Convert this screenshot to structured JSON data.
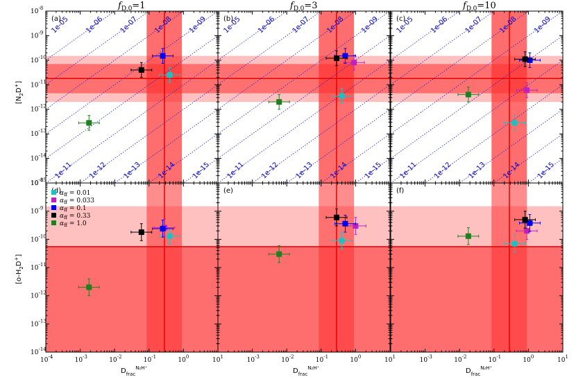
{
  "colors": {
    "band_light": "#ff8c8c",
    "band_dark": "#ff3030",
    "line_red": "#e80000",
    "diag_blue": "#1a1acc"
  },
  "xlabel": "D_frac^{N2H+}",
  "ylabel_top": "[N2D+]",
  "ylabel_bottom": "[o-H2D+]",
  "columns": [
    {
      "title": "f_{D,0}=1",
      "fD": "1"
    },
    {
      "title": "f_{D,0}=3",
      "fD": "3"
    },
    {
      "title": "f_{D,0}=10",
      "fD": "10"
    }
  ],
  "chart_data": {
    "type": "scatter",
    "x_scale": "log",
    "y_scale": "log",
    "xlim": [
      0.0001,
      10
    ],
    "ylim_top": [
      1e-15,
      1e-08
    ],
    "ylim_bottom": [
      1e-14,
      1e-08
    ],
    "x_ticks": [
      "10^-4",
      "10^-3",
      "10^-2",
      "10^-1",
      "10^0",
      "10^1"
    ],
    "y_ticks_top": [
      "10^-15",
      "10^-14",
      "10^-13",
      "10^-12",
      "10^-11",
      "10^-10",
      "10^-9",
      "10^-8"
    ],
    "y_ticks_bottom": [
      "10^-14",
      "10^-13",
      "10^-12",
      "10^-11",
      "10^-10",
      "10^-9",
      "10^-8"
    ],
    "legend": {
      "placement": "top-left of panel (d)",
      "entries": [
        {
          "label": "α_ff = 0.01",
          "color": "#20c0c0"
        },
        {
          "label": "α_ff = 0.033",
          "color": "#c020c0"
        },
        {
          "label": "α_ff = 0.1",
          "color": "#0000ee"
        },
        {
          "label": "α_ff = 0.33",
          "color": "#000000"
        },
        {
          "label": "α_ff = 1.0",
          "color": "#208020"
        }
      ]
    },
    "obs_x": {
      "value": 0.28,
      "range": [
        0.085,
        0.9
      ]
    },
    "obs_top": {
      "value": 1.8e-11,
      "inner": [
        4.5e-12,
        7e-11
      ],
      "outer": [
        2e-12,
        1.5e-10
      ]
    },
    "obs_bottom": {
      "value": 5.5e-11,
      "upper_limit": 1.5e-09
    },
    "diagonals_top": {
      "top_labels": [
        "1e-05",
        "1e-06",
        "1e-07",
        "1e-08",
        "1e-09"
      ],
      "bottom_labels": [
        "1e-11",
        "1e-12",
        "1e-13",
        "1e-14",
        "1e-15"
      ]
    },
    "panels": [
      {
        "label": "(a)",
        "row": 0,
        "col": 0,
        "points": [
          {
            "x": 0.4,
            "y": 2.5e-11,
            "color": "#20c0c0"
          },
          {
            "x": 0.25,
            "y": 1.5e-10,
            "color": "#c020c0"
          },
          {
            "x": 0.25,
            "y": 1.5e-10,
            "color": "#0000ee"
          },
          {
            "x": 0.06,
            "y": 4e-11,
            "color": "#000000"
          },
          {
            "x": 0.0018,
            "y": 2.8e-13,
            "color": "#208020"
          }
        ]
      },
      {
        "label": "(b)",
        "row": 0,
        "col": 1,
        "points": [
          {
            "x": 0.4,
            "y": 3.5e-12,
            "color": "#20c0c0"
          },
          {
            "x": 0.9,
            "y": 8e-11,
            "color": "#c020c0"
          },
          {
            "x": 0.5,
            "y": 1.5e-10,
            "color": "#0000ee"
          },
          {
            "x": 0.28,
            "y": 1.2e-10,
            "color": "#000000"
          },
          {
            "x": 0.006,
            "y": 2e-12,
            "color": "#208020"
          }
        ]
      },
      {
        "label": "(c)",
        "row": 0,
        "col": 2,
        "points": [
          {
            "x": 0.4,
            "y": 2.8e-13,
            "color": "#20c0c0"
          },
          {
            "x": 0.9,
            "y": 6e-12,
            "color": "#c020c0"
          },
          {
            "x": 1.1,
            "y": 1e-10,
            "color": "#0000ee"
          },
          {
            "x": 0.8,
            "y": 1.1e-10,
            "color": "#000000"
          },
          {
            "x": 0.018,
            "y": 4e-12,
            "color": "#208020"
          }
        ]
      },
      {
        "label": "(d)",
        "row": 1,
        "col": 0,
        "points": [
          {
            "x": 0.4,
            "y": 1.3e-10,
            "color": "#20c0c0"
          },
          {
            "x": 0.28,
            "y": 2.6e-10,
            "color": "#c020c0"
          },
          {
            "x": 0.25,
            "y": 2.4e-10,
            "color": "#0000ee"
          },
          {
            "x": 0.06,
            "y": 1.8e-10,
            "color": "#000000"
          },
          {
            "x": 0.0018,
            "y": 2e-12,
            "color": "#208020"
          }
        ]
      },
      {
        "label": "(e)",
        "row": 1,
        "col": 1,
        "points": [
          {
            "x": 0.4,
            "y": 9e-11,
            "color": "#20c0c0"
          },
          {
            "x": 1.0,
            "y": 3e-10,
            "color": "#c020c0"
          },
          {
            "x": 0.5,
            "y": 3.6e-10,
            "color": "#0000ee"
          },
          {
            "x": 0.28,
            "y": 6e-10,
            "color": "#000000"
          },
          {
            "x": 0.006,
            "y": 3e-11,
            "color": "#208020"
          }
        ]
      },
      {
        "label": "(f)",
        "row": 1,
        "col": 2,
        "points": [
          {
            "x": 0.4,
            "y": 7e-11,
            "color": "#20c0c0"
          },
          {
            "x": 0.9,
            "y": 2e-10,
            "color": "#c020c0"
          },
          {
            "x": 1.1,
            "y": 3.8e-10,
            "color": "#0000ee"
          },
          {
            "x": 0.8,
            "y": 5e-10,
            "color": "#000000"
          },
          {
            "x": 0.018,
            "y": 1.3e-10,
            "color": "#208020"
          }
        ]
      }
    ]
  }
}
